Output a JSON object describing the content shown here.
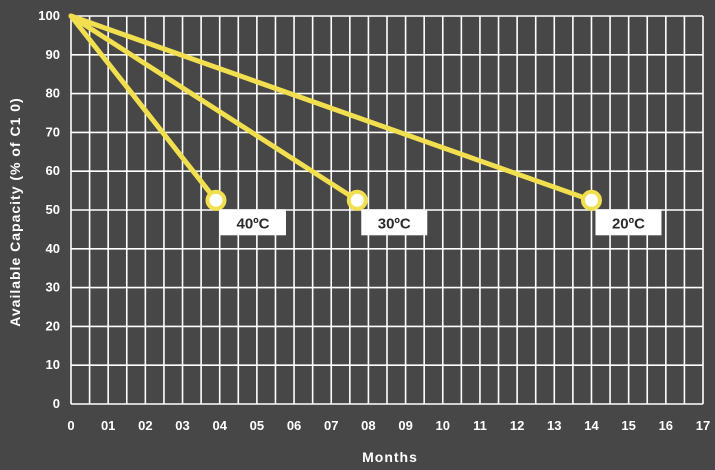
{
  "chart_data": {
    "type": "line",
    "xlabel": "Months",
    "ylabel": "Available Capacity (% of C1 0)",
    "x_tick_labels": [
      "0",
      "01",
      "02",
      "03",
      "04",
      "05",
      "06",
      "07",
      "08",
      "09",
      "10",
      "11",
      "12",
      "13",
      "14",
      "15",
      "16",
      "17"
    ],
    "y_tick_labels": [
      "0",
      "10",
      "20",
      "30",
      "40",
      "50",
      "60",
      "70",
      "80",
      "90",
      "100"
    ],
    "xlim": [
      0,
      17
    ],
    "ylim": [
      0,
      100
    ],
    "grid": true,
    "line_color": "#f2df4f",
    "background_color": "#474747",
    "grid_color": "#ffffff",
    "series": [
      {
        "label": "40ºC",
        "x": [
          0,
          3.9
        ],
        "y": [
          100,
          52.5
        ]
      },
      {
        "label": "30ºC",
        "x": [
          0,
          7.7
        ],
        "y": [
          100,
          52.5
        ]
      },
      {
        "label": "20ºC",
        "x": [
          0,
          14.0
        ],
        "y": [
          100,
          52.5
        ]
      }
    ]
  }
}
